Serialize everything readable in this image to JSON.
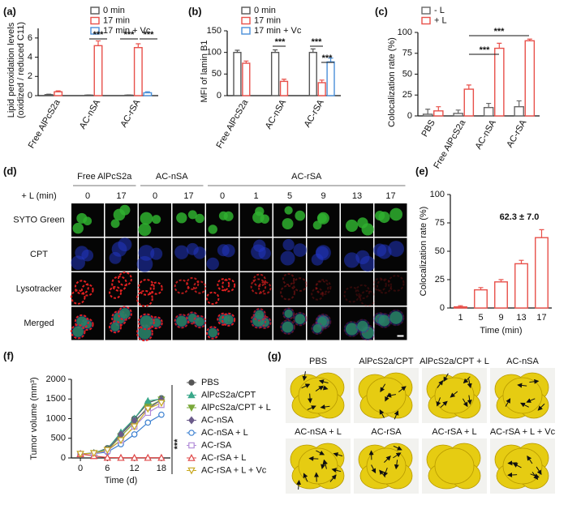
{
  "chart_data": [
    {
      "type": "bar",
      "panel": "(a)",
      "ylabel": [
        "Lipid peroxidation levels",
        "(oxidized / reduced C11)"
      ],
      "categories": [
        "Free AlPcS2a",
        "AC-nSA",
        "AC-rSA"
      ],
      "series": [
        {
          "name": "0 min",
          "color": "#555555",
          "values": [
            0.1,
            0.05,
            0.05
          ],
          "errors": [
            0.05,
            0.02,
            0.02
          ]
        },
        {
          "name": "17 min",
          "color": "#e8504a",
          "values": [
            0.4,
            5.2,
            5.0
          ],
          "errors": [
            0.1,
            0.5,
            0.4
          ]
        },
        {
          "name": "17 min + Vc",
          "color": "#4a8fd8",
          "values": [
            null,
            null,
            0.3
          ],
          "errors": [
            null,
            null,
            0.1
          ]
        }
      ],
      "ylim": [
        0,
        7
      ],
      "yticks": [
        0,
        2,
        4,
        6
      ],
      "annotations": [
        "***",
        "***",
        "***"
      ]
    },
    {
      "type": "bar",
      "panel": "(b)",
      "ylabel": [
        "MFI of lamin B1"
      ],
      "categories": [
        "Free AlPcS2a",
        "AC-nSA",
        "AC-rSA"
      ],
      "series": [
        {
          "name": "0 min",
          "color": "#555555",
          "values": [
            100,
            100,
            100
          ],
          "errors": [
            5,
            6,
            8
          ]
        },
        {
          "name": "17 min",
          "color": "#e8504a",
          "values": [
            75,
            33,
            30
          ],
          "errors": [
            5,
            5,
            6
          ]
        },
        {
          "name": "17 min + Vc",
          "color": "#4a8fd8",
          "values": [
            null,
            null,
            78
          ],
          "errors": [
            null,
            null,
            9
          ]
        }
      ],
      "ylim": [
        0,
        150
      ],
      "yticks": [
        0,
        50,
        100,
        150
      ],
      "annotations": [
        "***",
        "***",
        "***"
      ]
    },
    {
      "type": "bar",
      "panel": "(c)",
      "ylabel": [
        "Colocalization rate (%)"
      ],
      "categories": [
        "PBS",
        "Free AlPcS2a",
        "AC-nSA",
        "AC-rSA"
      ],
      "series": [
        {
          "name": "- L",
          "color": "#666666",
          "values": [
            2,
            3,
            10,
            11
          ],
          "errors": [
            6,
            4,
            5,
            7
          ]
        },
        {
          "name": "+ L",
          "color": "#e8504a",
          "values": [
            6,
            32,
            81,
            90
          ],
          "errors": [
            5,
            5,
            6,
            2
          ]
        }
      ],
      "ylim": [
        0,
        100
      ],
      "yticks": [
        0,
        25,
        50,
        75,
        100
      ],
      "annotations": [
        "***",
        "***"
      ]
    },
    {
      "type": "bar",
      "panel": "(e)",
      "ylabel": [
        "Colocalization rate (%)"
      ],
      "xlabel": "Time (min)",
      "categories": [
        "1",
        "5",
        "9",
        "13",
        "17"
      ],
      "values": [
        1,
        16,
        23,
        39,
        62
      ],
      "errors": [
        1,
        2,
        2,
        3,
        7
      ],
      "color": "#e8504a",
      "ylim": [
        0,
        100
      ],
      "yticks": [
        0,
        25,
        50,
        75,
        100
      ],
      "annotations": [
        "62.3 ± 7.0"
      ]
    },
    {
      "type": "line",
      "panel": "(f)",
      "ylabel": [
        "Tumor volume (mm³)"
      ],
      "xlabel": "Time (d)",
      "x": [
        0,
        3,
        6,
        9,
        12,
        15,
        18
      ],
      "xlim": [
        -2,
        20
      ],
      "xticks": [
        0,
        6,
        12,
        18
      ],
      "ylim": [
        0,
        2000
      ],
      "yticks": [
        0,
        500,
        1000,
        1500,
        2000
      ],
      "annotations": [
        "***"
      ],
      "series": [
        {
          "name": "PBS",
          "color": "#555555",
          "marker": "circle",
          "filled": true,
          "values": [
            100,
            120,
            250,
            600,
            1000,
            1400,
            1520
          ]
        },
        {
          "name": "AlPcS2a/CPT",
          "color": "#3aa88a",
          "marker": "triangle",
          "filled": true,
          "values": [
            100,
            130,
            230,
            650,
            1000,
            1450,
            1500
          ]
        },
        {
          "name": "AlPcS2a/CPT + L",
          "color": "#7aa83a",
          "marker": "triangle-down",
          "filled": true,
          "values": [
            100,
            120,
            200,
            550,
            900,
            1300,
            1480
          ]
        },
        {
          "name": "AC-nSA",
          "color": "#6b5b8a",
          "marker": "diamond",
          "filled": true,
          "values": [
            100,
            120,
            200,
            600,
            950,
            1250,
            1480
          ]
        },
        {
          "name": "AC-nSA + L",
          "color": "#3a7fd0",
          "marker": "circle",
          "filled": false,
          "values": [
            100,
            110,
            150,
            350,
            600,
            900,
            1100
          ]
        },
        {
          "name": "AC-rSA",
          "color": "#b08ad8",
          "marker": "square",
          "filled": false,
          "values": [
            100,
            110,
            180,
            450,
            800,
            1150,
            1350
          ]
        },
        {
          "name": "AC-rSA + L",
          "color": "#e04848",
          "marker": "triangle",
          "filled": false,
          "values": [
            100,
            50,
            10,
            5,
            5,
            5,
            5
          ]
        },
        {
          "name": "AC-rSA + L + Vc",
          "color": "#c8a820",
          "marker": "triangle-down",
          "filled": false,
          "values": [
            100,
            120,
            200,
            450,
            800,
            1250,
            1400
          ]
        }
      ]
    }
  ],
  "microscopy": {
    "panel": "(d)",
    "groups": [
      "Free AlPcS2a",
      "AC-nSA",
      "AC-rSA"
    ],
    "time_label": "+ L (min)",
    "times": [
      "0",
      "17",
      "0",
      "17",
      "0",
      "1",
      "5",
      "9",
      "13",
      "17"
    ],
    "channels": [
      "SYTO Green",
      "CPT",
      "Lysotracker",
      "Merged"
    ]
  },
  "photos": {
    "panel": "(g)",
    "labels": [
      "PBS",
      "AlPcS2a/CPT",
      "AlPcS2a/CPT + L",
      "AC-nSA",
      "AC-nSA + L",
      "AC-rSA",
      "AC-rSA + L",
      "AC-rSA + L + Vc"
    ]
  }
}
